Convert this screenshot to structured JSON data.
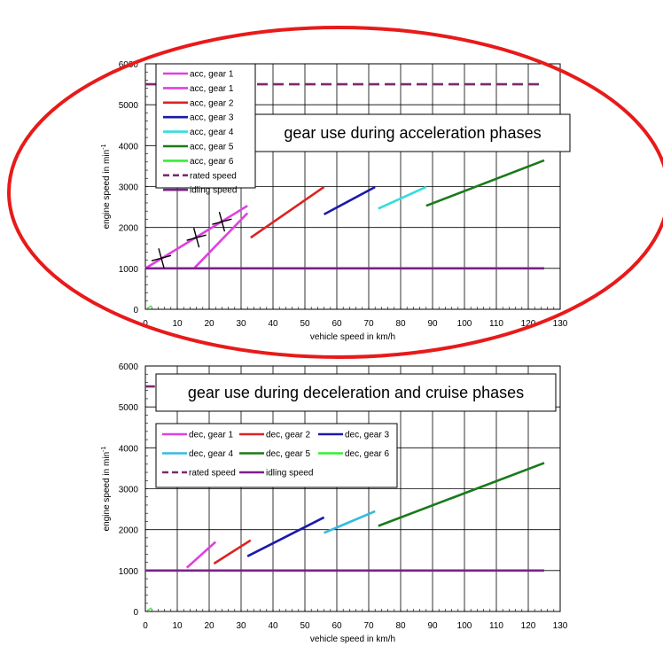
{
  "chart_data": [
    {
      "type": "line",
      "title": "gear use during acceleration phases",
      "xlabel": "vehicle speed in km/h",
      "ylabel": "engine speed in min",
      "ylabel_sup": "-1",
      "xlim": [
        0,
        130
      ],
      "ylim": [
        0,
        6000
      ],
      "x_ticks": [
        0,
        10,
        20,
        30,
        40,
        50,
        60,
        70,
        80,
        90,
        100,
        110,
        120,
        130
      ],
      "y_ticks": [
        0,
        1000,
        2000,
        3000,
        4000,
        5000,
        6000
      ],
      "grid": true,
      "legend_position": "top-left",
      "series": [
        {
          "name": "acc, gear 1",
          "color": "#e040e0",
          "points": [
            [
              0,
              1000
            ],
            [
              32,
              2530
            ]
          ]
        },
        {
          "name": "acc, gear 1",
          "color": "#e040e0",
          "points": [
            [
              15.5,
              1020
            ],
            [
              32,
              2350
            ]
          ]
        },
        {
          "name": "acc, gear 2",
          "color": "#dd2222",
          "points": [
            [
              33,
              1750
            ],
            [
              56,
              2990
            ]
          ]
        },
        {
          "name": "acc, gear 3",
          "color": "#1a1aaa",
          "points": [
            [
              56,
              2320
            ],
            [
              72,
              2990
            ]
          ]
        },
        {
          "name": "acc, gear 4",
          "color": "#33dddd",
          "points": [
            [
              73,
              2460
            ],
            [
              88,
              2990
            ]
          ]
        },
        {
          "name": "acc, gear 5",
          "color": "#1a7a1a",
          "points": [
            [
              88,
              2530
            ],
            [
              125,
              3640
            ]
          ]
        },
        {
          "name": "acc, gear 6",
          "color": "#33ee33",
          "points": []
        },
        {
          "name": "rated speed",
          "color": "#7b2a6e",
          "dashed": true,
          "points": [
            [
              0,
              5500
            ],
            [
              125,
              5500
            ]
          ]
        },
        {
          "name": "idling speed",
          "color": "#7b1f8a",
          "points": [
            [
              0,
              1000
            ],
            [
              125,
              1000
            ]
          ]
        }
      ],
      "markers": [
        [
          5,
          1250
        ],
        [
          16,
          1750
        ],
        [
          24,
          2140
        ]
      ]
    },
    {
      "type": "line",
      "title": "gear use during deceleration and cruise phases",
      "xlabel": "vehicle speed in km/h",
      "ylabel": "engine speed in min",
      "ylabel_sup": "-1",
      "xlim": [
        0,
        130
      ],
      "ylim": [
        0,
        6000
      ],
      "x_ticks": [
        0,
        10,
        20,
        30,
        40,
        50,
        60,
        70,
        80,
        90,
        100,
        110,
        120,
        130
      ],
      "y_ticks": [
        0,
        1000,
        2000,
        3000,
        4000,
        5000,
        6000
      ],
      "grid": true,
      "legend_position": "top-left",
      "series": [
        {
          "name": "dec, gear 1",
          "color": "#e040e0",
          "points": [
            [
              13,
              1070
            ],
            [
              22,
              1700
            ]
          ]
        },
        {
          "name": "dec, gear 2",
          "color": "#dd2222",
          "points": [
            [
              21.5,
              1170
            ],
            [
              33,
              1740
            ]
          ]
        },
        {
          "name": "dec, gear 3",
          "color": "#1a1aaa",
          "points": [
            [
              32,
              1350
            ],
            [
              56,
              2300
            ]
          ]
        },
        {
          "name": "dec, gear 4",
          "color": "#33bbdd",
          "points": [
            [
              56,
              1920
            ],
            [
              72,
              2450
            ]
          ]
        },
        {
          "name": "dec, gear 5",
          "color": "#1a7a1a",
          "points": [
            [
              73,
              2090
            ],
            [
              125,
              3630
            ]
          ]
        },
        {
          "name": "dec, gear 6",
          "color": "#33ee33",
          "points": []
        },
        {
          "name": "rated speed",
          "color": "#7b2a6e",
          "dashed": true,
          "points": [
            [
              0,
              5500
            ],
            [
              3,
              5500
            ]
          ]
        },
        {
          "name": "idling speed",
          "color": "#7b1f8a",
          "points": [
            [
              0,
              1000
            ],
            [
              125,
              1000
            ]
          ]
        }
      ],
      "markers": []
    }
  ]
}
